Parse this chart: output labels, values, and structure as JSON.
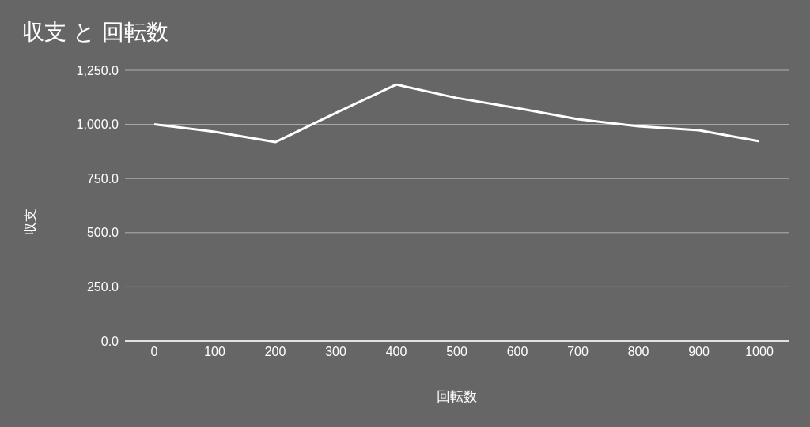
{
  "chart_data": {
    "type": "line",
    "title": "収支 と 回転数",
    "xlabel": "回転数",
    "ylabel": "収支",
    "categories": [
      "0",
      "100",
      "200",
      "300",
      "400",
      "500",
      "600",
      "700",
      "800",
      "900",
      "1000"
    ],
    "series": [
      {
        "color": "#ffffff",
        "values": [
          1000,
          966,
          918,
          1053,
          1184,
          1122,
          1075,
          1024,
          991,
          973,
          922
        ]
      }
    ],
    "ylim": [
      0,
      1250
    ],
    "yticks": [
      {
        "value": 0,
        "label": "0.0"
      },
      {
        "value": 250,
        "label": "250.0"
      },
      {
        "value": 500,
        "label": "500.0"
      },
      {
        "value": 750,
        "label": "750.0"
      },
      {
        "value": 1000,
        "label": "1,000.0"
      },
      {
        "value": 1250,
        "label": "1,250.0"
      }
    ],
    "grid": "y",
    "marker": "none"
  }
}
